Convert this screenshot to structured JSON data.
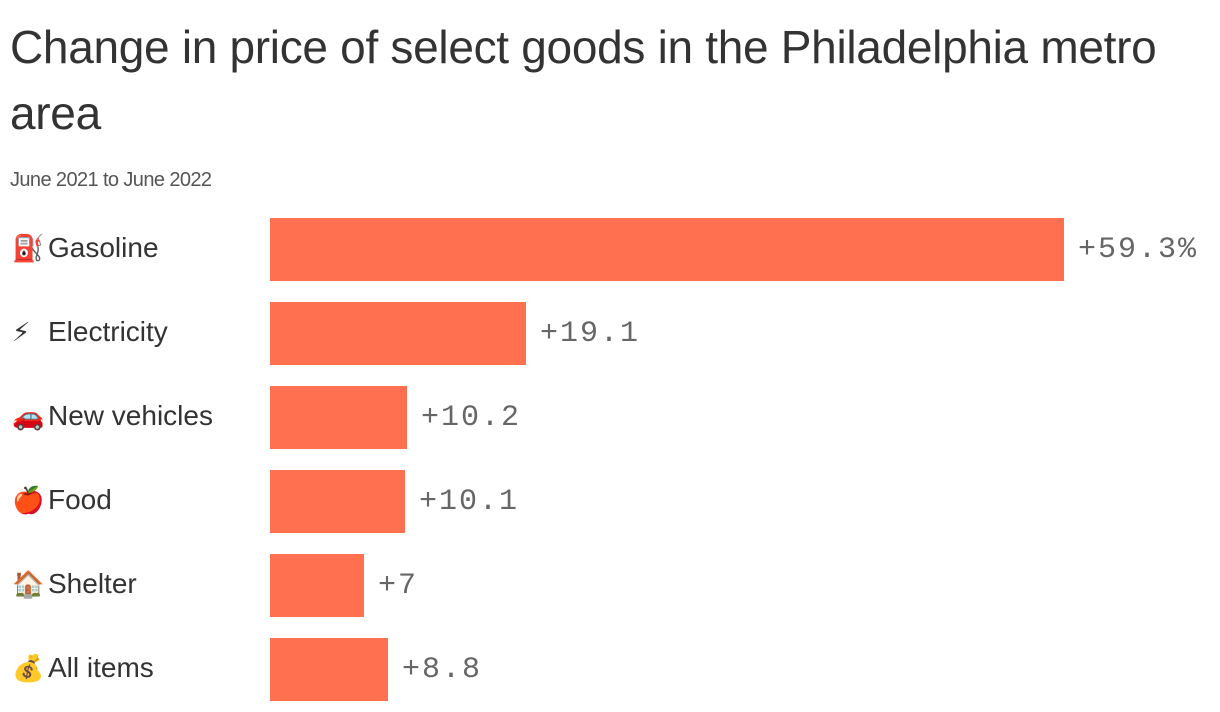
{
  "header": {
    "title": "Change in price of select goods in the Philadelphia metro area",
    "subtitle": "June 2021 to June 2022"
  },
  "colors": {
    "bar": "#ff7050",
    "title": "#333333",
    "subtitle": "#555555",
    "value_label": "#666666"
  },
  "rows": [
    {
      "icon": "fuel-pump-icon",
      "emoji": "⛽",
      "label": "Gasoline",
      "value": 59.3,
      "value_label": "+59.3%"
    },
    {
      "icon": "lightning-icon",
      "emoji": "⚡",
      "label": "Electricity",
      "value": 19.1,
      "value_label": "+19.1"
    },
    {
      "icon": "car-icon",
      "emoji": "🚗",
      "label": "New vehicles",
      "value": 10.2,
      "value_label": "+10.2"
    },
    {
      "icon": "apple-icon",
      "emoji": "🍎",
      "label": "Food",
      "value": 10.1,
      "value_label": "+10.1"
    },
    {
      "icon": "house-icon",
      "emoji": "🏠",
      "label": "Shelter",
      "value": 7,
      "value_label": "+7"
    },
    {
      "icon": "money-bag-icon",
      "emoji": "💰",
      "label": "All items",
      "value": 8.8,
      "value_label": "+8.8"
    }
  ],
  "chart_data": {
    "type": "bar",
    "orientation": "horizontal",
    "title": "Change in price of select goods in the Philadelphia metro area",
    "subtitle": "June 2021 to June 2022",
    "categories": [
      "Gasoline",
      "Electricity",
      "New vehicles",
      "Food",
      "Shelter",
      "All items"
    ],
    "values": [
      59.3,
      19.1,
      10.2,
      10.1,
      7,
      8.8
    ],
    "data_labels": [
      "+59.3%",
      "+19.1",
      "+10.2",
      "+10.1",
      "+7",
      "+8.8"
    ],
    "xlabel": "",
    "ylabel": "",
    "unit": "%",
    "xlim": [
      0,
      59.3
    ],
    "grid": false,
    "legend": null,
    "color": "#ff7050"
  }
}
